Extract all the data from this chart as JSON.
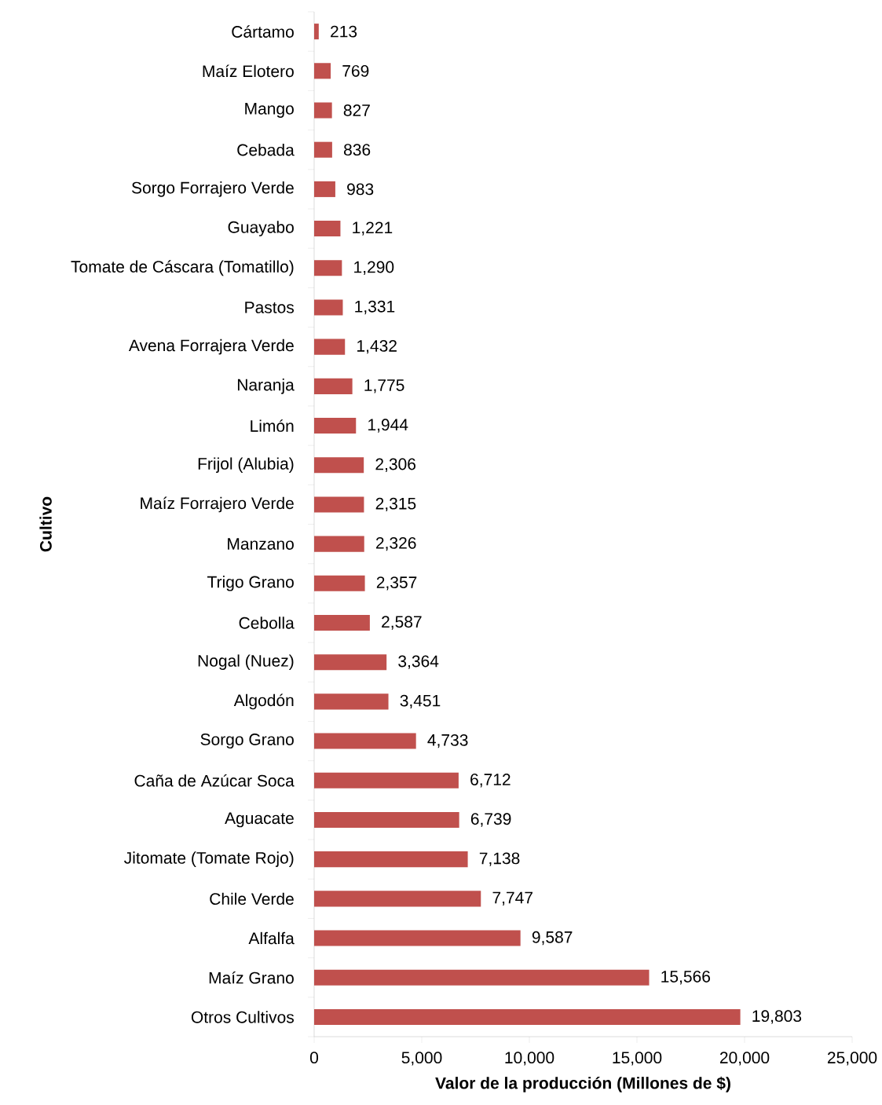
{
  "chart_data": {
    "type": "bar",
    "orientation": "horizontal",
    "xlabel": "Valor de la producción (Millones de $)",
    "ylabel": "Cultivo",
    "color": "#c0504d",
    "categories": [
      "Cártamo",
      "Maíz Elotero",
      "Mango",
      "Cebada",
      "Sorgo Forrajero Verde",
      "Guayabo",
      "Tomate de Cáscara (Tomatillo)",
      "Pastos",
      "Avena Forrajera Verde",
      "Naranja",
      "Limón",
      "Frijol (Alubia)",
      "Maíz Forrajero Verde",
      "Manzano",
      "Trigo Grano",
      "Cebolla",
      "Nogal (Nuez)",
      "Algodón",
      "Sorgo Grano",
      "Caña de Azúcar Soca",
      "Aguacate",
      "Jitomate (Tomate Rojo)",
      "Chile Verde",
      "Alfalfa",
      "Maíz Grano",
      "Otros Cultivos"
    ],
    "values": [
      213,
      769,
      827,
      836,
      983,
      1221,
      1290,
      1331,
      1432,
      1775,
      1944,
      2306,
      2315,
      2326,
      2357,
      2587,
      3364,
      3451,
      4733,
      6712,
      6739,
      7138,
      7747,
      9587,
      15566,
      19803
    ],
    "value_labels": [
      "213",
      "769",
      "827",
      "836",
      "983",
      "1,221",
      "1,290",
      "1,331",
      "1,432",
      "1,775",
      "1,944",
      "2,306",
      "2,315",
      "2,326",
      "2,357",
      "2,587",
      "3,364",
      "3,451",
      "4,733",
      "6,712",
      "6,739",
      "7,138",
      "7,747",
      "9,587",
      "15,566",
      "19,803"
    ],
    "xlim": [
      0,
      25000
    ],
    "xticks": [
      0,
      {
        "value": 5000,
        "label": "5,000"
      },
      {
        "value": 10000,
        "label": "10,000"
      },
      {
        "value": 15000,
        "label": "15,000"
      },
      {
        "value": 20000,
        "label": "20,000"
      },
      {
        "value": 25000,
        "label": "25,000"
      }
    ]
  }
}
